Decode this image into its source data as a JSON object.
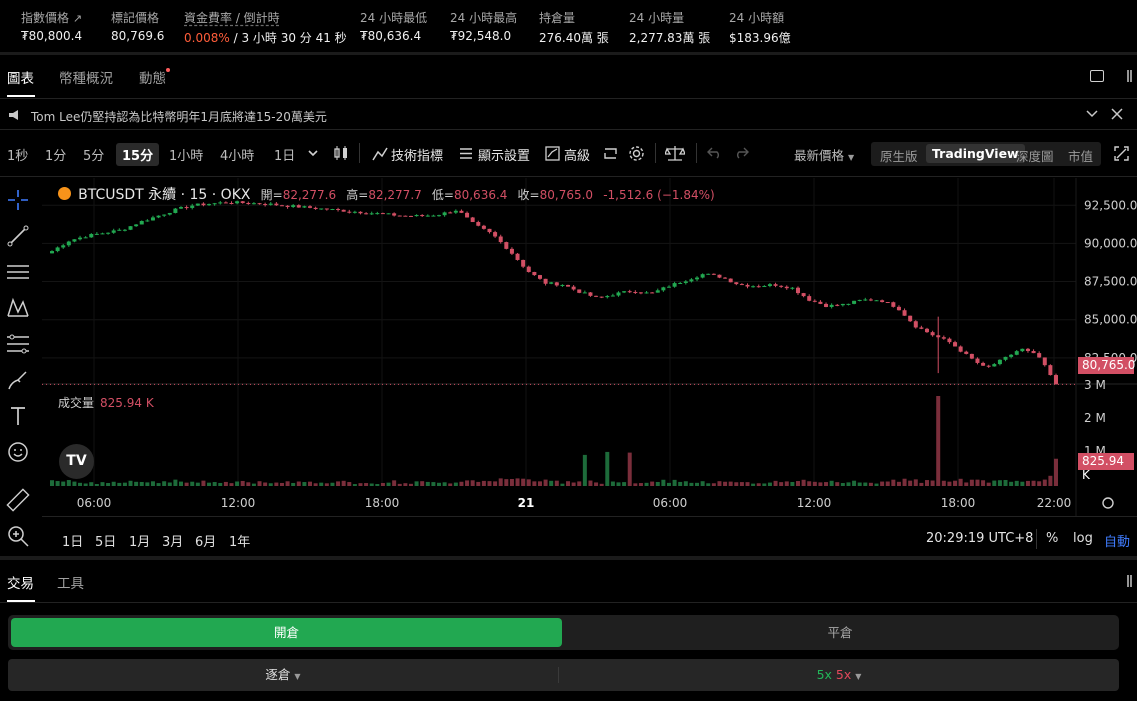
{
  "stats": [
    {
      "label": "指數價格",
      "value": "₮80,800.4"
    },
    {
      "label": "標記價格",
      "value": "80,769.6"
    },
    {
      "label": "資金費率 / 倒計時",
      "value_red": "0.008%",
      "value_rest": " / 3 小時 30 分 41 秒"
    },
    {
      "label": "24 小時最低",
      "value": "₮80,636.4"
    },
    {
      "label": "24 小時最高",
      "value": "₮92,548.0"
    },
    {
      "label": "持倉量",
      "value": "276.40萬 張"
    },
    {
      "label": "24 小時量",
      "value": "2,277.83萬 張"
    },
    {
      "label": "24 小時額",
      "value": "$183.96億"
    }
  ],
  "tabs": {
    "chart": "圖表",
    "overview": "幣種概況",
    "dynamics": "動態"
  },
  "news": {
    "text": "Tom Lee仍堅持認為比特幣明年1月底將達15-20萬美元"
  },
  "toolbar": {
    "intervals": [
      "1秒",
      "1分",
      "5分",
      "15分",
      "1小時",
      "4小時",
      "1日"
    ],
    "indicators": "技術指標",
    "display": "顯示設置",
    "advanced": "高級",
    "price_type": "最新價格",
    "views": [
      "原生版",
      "TradingView",
      "深度圖",
      "市值"
    ]
  },
  "legend": {
    "symbol": "BTCUSDT 永續 · 15 · OKX",
    "open_k": "開=",
    "open": "82,277.6",
    "high_k": "高=",
    "high": "82,277.7",
    "low_k": "低=",
    "low": "80,636.4",
    "close_k": "收=",
    "close": "80,765.0",
    "change": "-1,512.6 (−1.84%)"
  },
  "volume": {
    "label": "成交量",
    "value": "825.94 K"
  },
  "price_axis": [
    "92,500.0",
    "90,000.0",
    "87,500.0",
    "85,000.0",
    "82,500.0"
  ],
  "vol_axis": [
    "3 M",
    "2 M",
    "1 M"
  ],
  "time_axis": [
    "06:00",
    "12:00",
    "18:00",
    "21",
    "06:00",
    "12:00",
    "18:00",
    "22:00"
  ],
  "last_price_tag": "80,765.0",
  "last_vol_tag": "825.94 K",
  "ranges": [
    "1日",
    "5日",
    "1月",
    "3月",
    "6月",
    "1年"
  ],
  "clock": "20:29:19 UTC+8",
  "scale": {
    "percent": "%",
    "log": "log",
    "auto": "自動"
  },
  "trade_tabs": {
    "trade": "交易",
    "tools": "工具"
  },
  "order": {
    "open": "開倉",
    "close": "平倉",
    "margin_mode": "逐倉",
    "lev_long": "5x",
    "lev_short": "5x"
  },
  "chart_data": {
    "type": "candlestick",
    "symbol": "BTCUSDT",
    "interval": "15",
    "ylim": [
      80000,
      93500
    ],
    "close_path": [
      89500,
      90200,
      90500,
      90700,
      90900,
      91400,
      91800,
      92200,
      92500,
      92600,
      92700,
      92650,
      92600,
      92500,
      92400,
      92300,
      92200,
      92100,
      92000,
      91900,
      91800,
      91800,
      91900,
      92200,
      91200,
      90600,
      89500,
      88200,
      87400,
      87300,
      86800,
      86400,
      86700,
      86900,
      86700,
      87200,
      87600,
      88000,
      87800,
      87300,
      87200,
      87300,
      87100,
      86300,
      85900,
      86000,
      86300,
      86300,
      85800,
      84600,
      84000,
      83500,
      82600,
      81800,
      82400,
      83100,
      82600,
      80765
    ],
    "volume_spike": 3000000,
    "last_volume": 825940
  }
}
